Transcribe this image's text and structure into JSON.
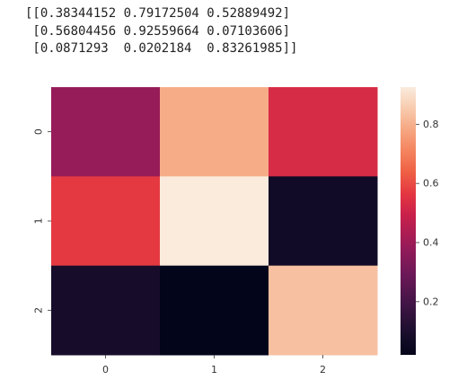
{
  "printed_output": {
    "lines": [
      "[[0.38344152 0.79172504 0.52889492]",
      " [0.56804456 0.92559664 0.07103606]",
      " [0.0871293  0.0202184  0.83261985]]"
    ]
  },
  "chart_data": {
    "type": "heatmap",
    "title": "",
    "xlabel": "",
    "ylabel": "",
    "x_categories": [
      "0",
      "1",
      "2"
    ],
    "y_categories": [
      "0",
      "1",
      "2"
    ],
    "values": [
      [
        0.38344152,
        0.79172504,
        0.52889492
      ],
      [
        0.56804456,
        0.92559664,
        0.07103606
      ],
      [
        0.0871293,
        0.0202184,
        0.83261985
      ]
    ],
    "colorbar": {
      "vmin": 0.0202184,
      "vmax": 0.92559664,
      "ticks": [
        0.2,
        0.4,
        0.6,
        0.8
      ],
      "tick_labels": [
        "0.2",
        "0.4",
        "0.6",
        "0.8"
      ],
      "placement": "right"
    },
    "colormap": "rocket",
    "grid": false
  }
}
